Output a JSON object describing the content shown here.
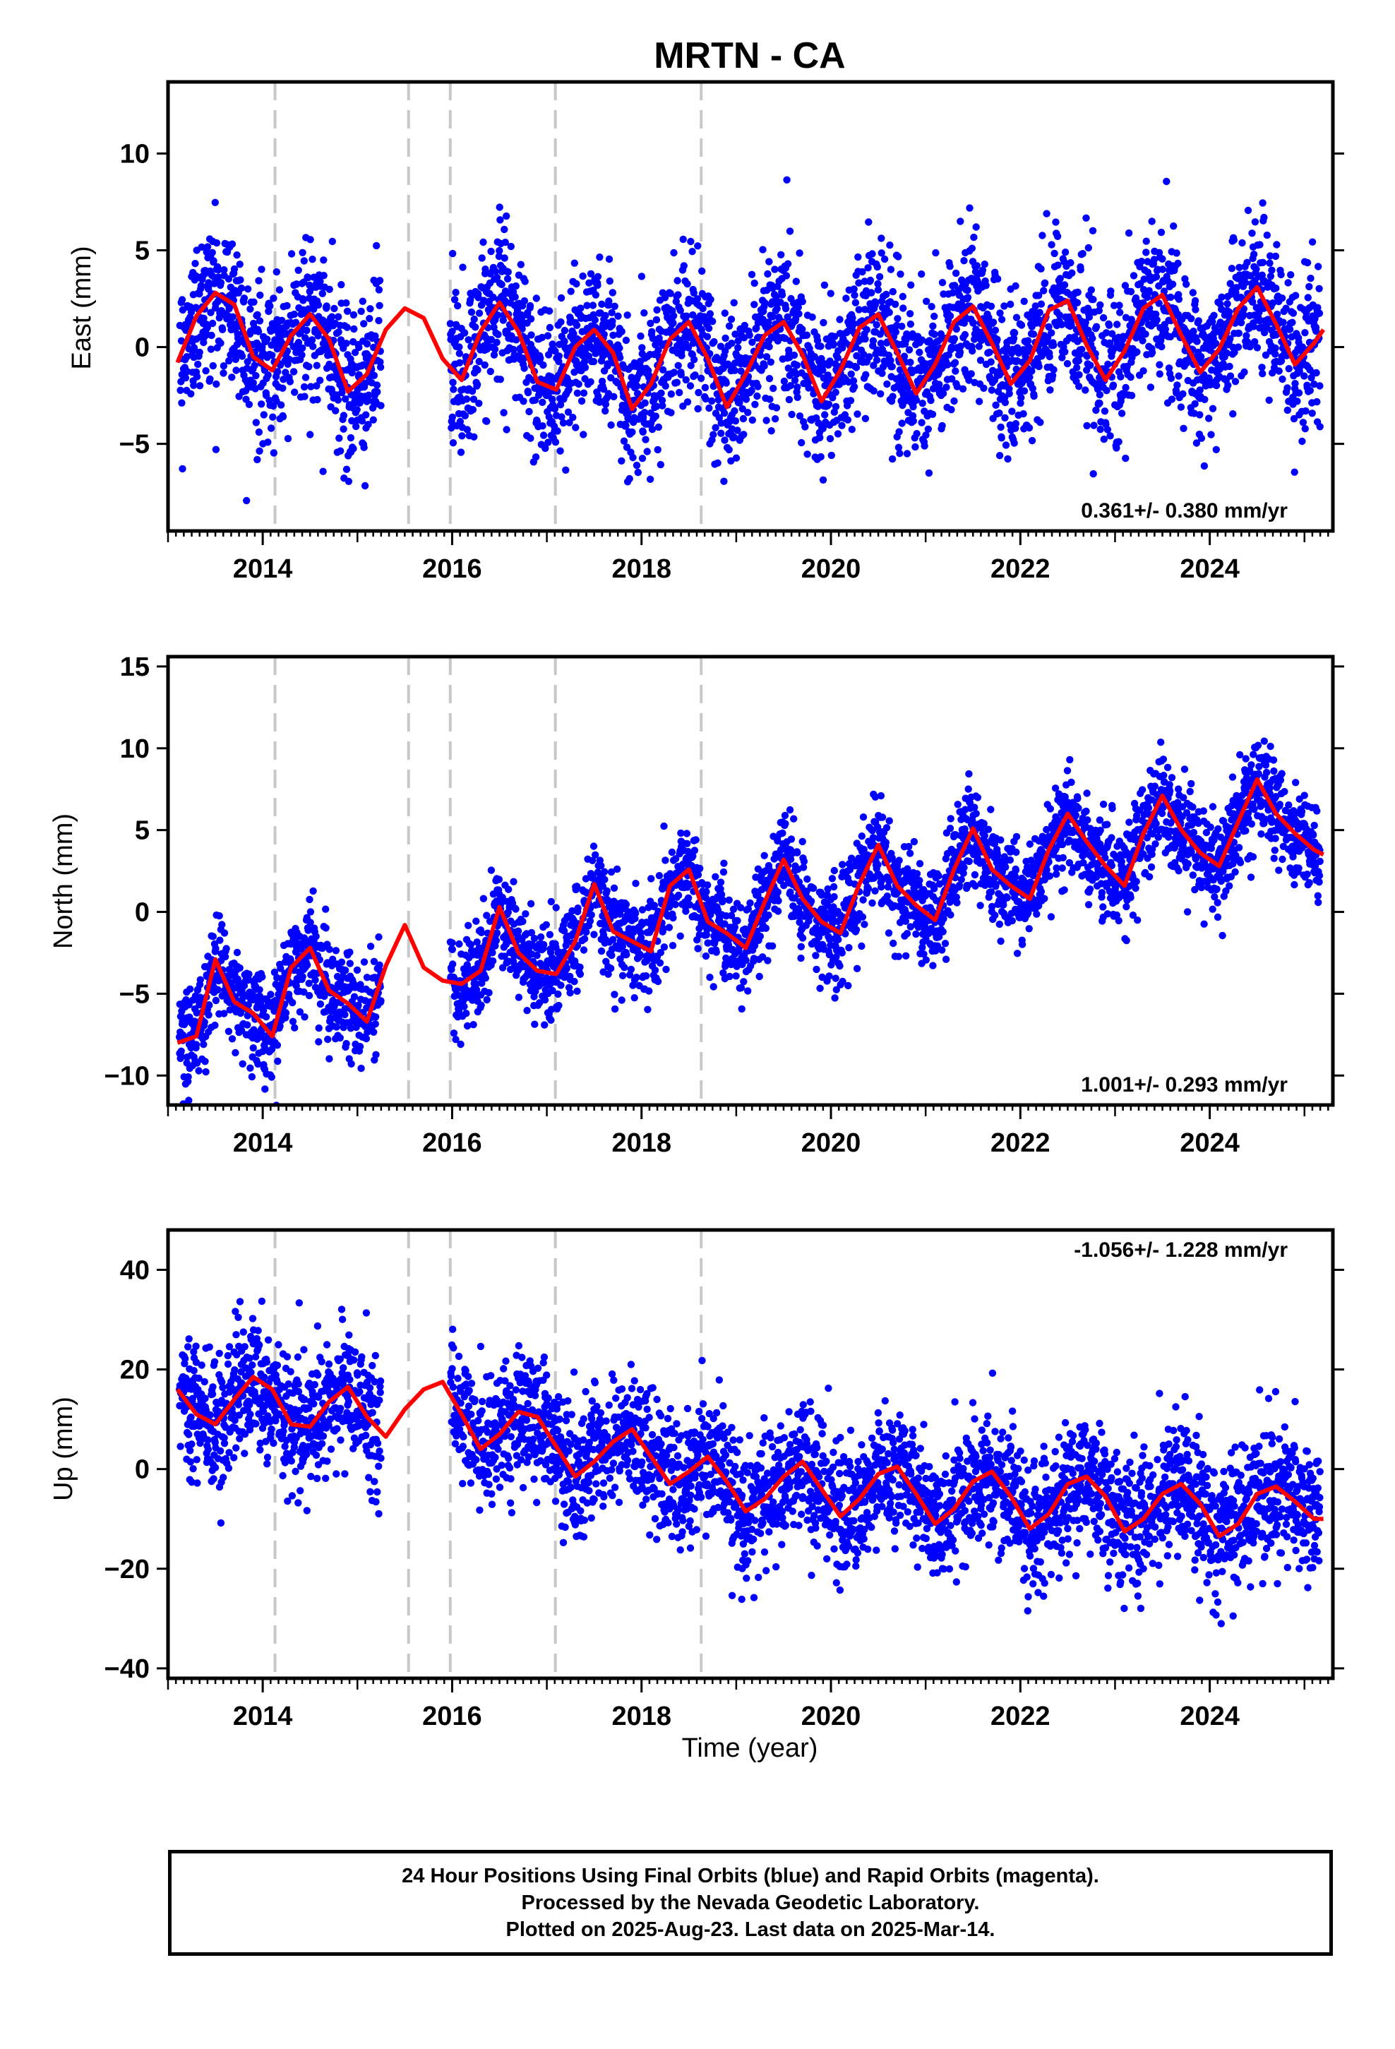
{
  "title": "MRTN - CA",
  "x_axis_label": "Time (year)",
  "footer": {
    "line1": "24 Hour Positions Using Final Orbits (blue) and Rapid Orbits (magenta).",
    "line2": "Processed by the Nevada Geodetic Laboratory.",
    "line3": "Plotted on 2025-Aug-23. Last data on 2025-Mar-14."
  },
  "colors": {
    "points": "#0000ff",
    "fit": "#ff0000",
    "offset_lines": "#c8c8c8",
    "frame": "#000000"
  },
  "chart_data": [
    {
      "type": "scatter",
      "ylabel": "East (mm)",
      "xlim": [
        2013.0,
        2025.3
      ],
      "ylim": [
        -9.5,
        13.7
      ],
      "yticks": [
        -5,
        0,
        5,
        10
      ],
      "xticks": [
        2014,
        2016,
        2018,
        2020,
        2022,
        2024
      ],
      "grid": false,
      "rate_label": "0.361+/- 0.380 mm/yr",
      "rate_label_position": "bottom-right",
      "offset_lines_x": [
        2014.13,
        2015.54,
        2015.98,
        2017.09,
        2018.63
      ],
      "data_gap": [
        2015.25,
        2015.98
      ],
      "fit": {
        "x": [
          2013.1,
          2013.3,
          2013.5,
          2013.7,
          2013.9,
          2014.1,
          2014.3,
          2014.5,
          2014.7,
          2014.9,
          2015.1,
          2015.3,
          2015.5,
          2015.7,
          2015.9,
          2016.1,
          2016.3,
          2016.5,
          2016.7,
          2016.9,
          2017.1,
          2017.3,
          2017.5,
          2017.7,
          2017.9,
          2018.1,
          2018.3,
          2018.5,
          2018.7,
          2018.9,
          2019.1,
          2019.3,
          2019.5,
          2019.7,
          2019.9,
          2020.1,
          2020.3,
          2020.5,
          2020.7,
          2020.9,
          2021.1,
          2021.3,
          2021.5,
          2021.7,
          2021.9,
          2022.1,
          2022.3,
          2022.5,
          2022.7,
          2022.9,
          2023.1,
          2023.3,
          2023.5,
          2023.7,
          2023.9,
          2024.1,
          2024.3,
          2024.5,
          2024.7,
          2024.9,
          2025.1,
          2025.2
        ],
        "y": [
          -0.8,
          1.6,
          2.8,
          2.2,
          -0.5,
          -1.2,
          0.6,
          1.7,
          0.4,
          -2.3,
          -1.4,
          0.9,
          2.0,
          1.5,
          -0.6,
          -1.7,
          0.8,
          2.3,
          0.8,
          -1.8,
          -2.2,
          0.0,
          0.9,
          -0.3,
          -3.2,
          -1.9,
          0.4,
          1.3,
          -0.6,
          -3.1,
          -1.4,
          0.6,
          1.3,
          -0.4,
          -2.8,
          -1.2,
          1.0,
          1.7,
          -0.3,
          -2.4,
          -0.9,
          1.3,
          2.1,
          0.2,
          -1.9,
          -0.7,
          1.9,
          2.4,
          0.1,
          -1.7,
          -0.2,
          2.0,
          2.7,
          0.6,
          -1.3,
          -0.1,
          2.0,
          3.1,
          1.2,
          -0.9,
          0.2,
          0.9
        ]
      }
    },
    {
      "type": "scatter",
      "ylabel": "North (mm)",
      "xlim": [
        2013.0,
        2025.3
      ],
      "ylim": [
        -11.8,
        15.6
      ],
      "yticks": [
        -10,
        -5,
        0,
        5,
        10,
        15
      ],
      "xticks": [
        2014,
        2016,
        2018,
        2020,
        2022,
        2024
      ],
      "grid": false,
      "rate_label": "1.001+/- 0.293 mm/yr",
      "rate_label_position": "bottom-right",
      "offset_lines_x": [
        2014.13,
        2015.54,
        2015.98,
        2017.09,
        2018.63
      ],
      "data_gap": [
        2015.25,
        2015.98
      ],
      "fit": {
        "x": [
          2013.1,
          2013.3,
          2013.5,
          2013.7,
          2013.9,
          2014.1,
          2014.3,
          2014.5,
          2014.7,
          2014.9,
          2015.1,
          2015.3,
          2015.5,
          2015.7,
          2015.9,
          2016.1,
          2016.3,
          2016.5,
          2016.7,
          2016.9,
          2017.1,
          2017.3,
          2017.5,
          2017.7,
          2017.9,
          2018.1,
          2018.3,
          2018.5,
          2018.7,
          2018.9,
          2019.1,
          2019.3,
          2019.5,
          2019.7,
          2019.9,
          2020.1,
          2020.3,
          2020.5,
          2020.7,
          2020.9,
          2021.1,
          2021.3,
          2021.5,
          2021.7,
          2021.9,
          2022.1,
          2022.3,
          2022.5,
          2022.7,
          2022.9,
          2023.1,
          2023.3,
          2023.5,
          2023.7,
          2023.9,
          2024.1,
          2024.3,
          2024.5,
          2024.7,
          2024.9,
          2025.1,
          2025.2
        ],
        "y": [
          -8.0,
          -7.6,
          -2.9,
          -5.5,
          -6.2,
          -7.6,
          -3.4,
          -2.2,
          -4.8,
          -5.6,
          -6.7,
          -3.3,
          -0.8,
          -3.4,
          -4.2,
          -4.4,
          -3.6,
          0.3,
          -2.5,
          -3.6,
          -3.8,
          -1.8,
          1.7,
          -1.2,
          -1.8,
          -2.4,
          1.6,
          2.6,
          -0.6,
          -1.3,
          -2.2,
          0.6,
          3.2,
          0.8,
          -0.6,
          -1.3,
          1.7,
          4.1,
          1.6,
          0.4,
          -0.5,
          2.6,
          5.1,
          2.6,
          1.6,
          0.8,
          3.8,
          6.0,
          4.3,
          2.8,
          1.6,
          4.8,
          7.1,
          5.0,
          3.6,
          2.8,
          5.5,
          8.1,
          6.0,
          4.8,
          3.8,
          3.5
        ]
      }
    },
    {
      "type": "scatter",
      "ylabel": "Up (mm)",
      "xlim": [
        2013.0,
        2025.3
      ],
      "ylim": [
        -42.0,
        48.0
      ],
      "yticks": [
        -40,
        -20,
        0,
        20,
        40
      ],
      "xticks": [
        2014,
        2016,
        2018,
        2020,
        2022,
        2024
      ],
      "grid": false,
      "rate_label": "-1.056+/- 1.228 mm/yr",
      "rate_label_position": "top-right",
      "offset_lines_x": [
        2014.13,
        2015.54,
        2015.98,
        2017.09,
        2018.63
      ],
      "data_gap": [
        2015.25,
        2015.98
      ],
      "fit": {
        "x": [
          2013.1,
          2013.3,
          2013.5,
          2013.7,
          2013.9,
          2014.1,
          2014.3,
          2014.5,
          2014.7,
          2014.9,
          2015.1,
          2015.3,
          2015.5,
          2015.7,
          2015.9,
          2016.1,
          2016.3,
          2016.5,
          2016.7,
          2016.9,
          2017.1,
          2017.3,
          2017.5,
          2017.7,
          2017.9,
          2018.1,
          2018.3,
          2018.5,
          2018.7,
          2018.9,
          2019.1,
          2019.3,
          2019.5,
          2019.7,
          2019.9,
          2020.1,
          2020.3,
          2020.5,
          2020.7,
          2020.9,
          2021.1,
          2021.3,
          2021.5,
          2021.7,
          2021.9,
          2022.1,
          2022.3,
          2022.5,
          2022.7,
          2022.9,
          2023.1,
          2023.3,
          2023.5,
          2023.7,
          2023.9,
          2024.1,
          2024.3,
          2024.5,
          2024.7,
          2024.9,
          2025.1,
          2025.2
        ],
        "y": [
          16.0,
          11.0,
          9.0,
          14.0,
          18.5,
          16.0,
          9.0,
          8.5,
          13.5,
          16.5,
          10.5,
          6.5,
          12.0,
          16.0,
          17.5,
          11.0,
          4.0,
          7.0,
          11.5,
          10.5,
          4.5,
          -1.5,
          1.5,
          5.5,
          8.0,
          2.5,
          -3.0,
          -0.5,
          2.5,
          -2.5,
          -8.5,
          -6.0,
          -1.5,
          1.5,
          -4.0,
          -9.5,
          -6.0,
          -1.0,
          0.5,
          -5.0,
          -11.0,
          -8.0,
          -2.5,
          -0.5,
          -5.5,
          -12.0,
          -9.0,
          -3.0,
          -1.5,
          -5.5,
          -12.5,
          -10.0,
          -5.0,
          -3.0,
          -7.0,
          -13.5,
          -11.0,
          -5.0,
          -3.5,
          -6.5,
          -10.0,
          -10.0
        ]
      }
    }
  ]
}
